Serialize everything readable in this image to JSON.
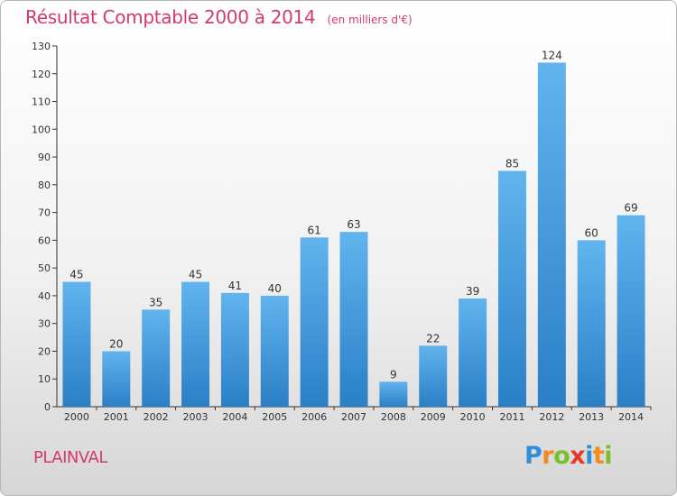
{
  "title": "Résultat Comptable 2000 à 2014",
  "subtitle": "(en milliers d'€)",
  "place": "PLAINVAL",
  "logo": {
    "text": "Proxiti",
    "letters": [
      {
        "ch": "P",
        "color": "#2f8fd6"
      },
      {
        "ch": "r",
        "color": "#f28a1e"
      },
      {
        "ch": "o",
        "color": "#7cbf2a"
      },
      {
        "ch": "x",
        "color": "#e2392a"
      },
      {
        "ch": "i",
        "color": "#2f8fd6"
      },
      {
        "ch": "t",
        "color": "#f28a1e"
      },
      {
        "ch": "i",
        "color": "#7cbf2a"
      }
    ]
  },
  "colors": {
    "accent": "#d23a6f",
    "bar_top": "#62b4ee",
    "bar_bottom": "#2a7fc6",
    "axis": "#333333"
  },
  "chart_data": {
    "type": "bar",
    "title": "Résultat Comptable 2000 à 2014",
    "subtitle": "(en milliers d'€)",
    "categories": [
      "2000",
      "2001",
      "2002",
      "2003",
      "2004",
      "2005",
      "2006",
      "2007",
      "2008",
      "2009",
      "2010",
      "2011",
      "2012",
      "2013",
      "2014"
    ],
    "values": [
      45,
      20,
      35,
      45,
      41,
      40,
      61,
      63,
      9,
      22,
      39,
      85,
      124,
      60,
      69
    ],
    "ylim": [
      0,
      130
    ],
    "yticks": [
      0,
      10,
      20,
      30,
      40,
      50,
      60,
      70,
      80,
      90,
      100,
      110,
      120,
      130
    ],
    "grid": false,
    "legend": "none"
  }
}
